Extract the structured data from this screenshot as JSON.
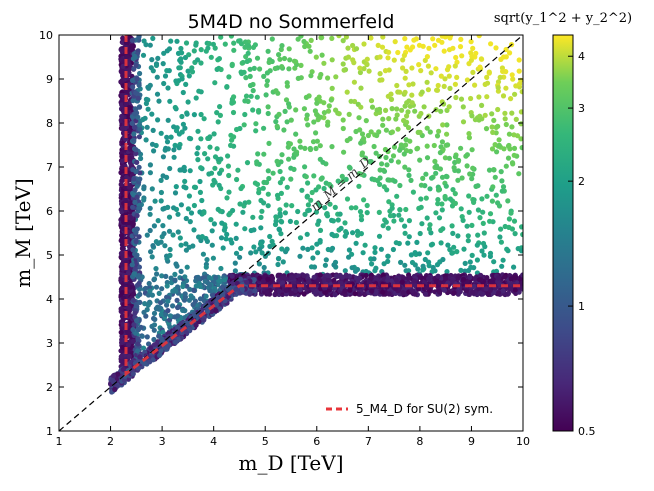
{
  "chart_data": {
    "type": "scatter",
    "title": "5M4D no Sommerfeld",
    "xlabel": "m_D [TeV]",
    "ylabel": "m_M [TeV]",
    "xlim": [
      1,
      10
    ],
    "ylim": [
      1,
      10
    ],
    "x_ticks": [
      "1",
      "2",
      "3",
      "4",
      "5",
      "6",
      "7",
      "8",
      "9",
      "10"
    ],
    "y_ticks": [
      "1",
      "2",
      "3",
      "4",
      "5",
      "6",
      "7",
      "8",
      "9",
      "10"
    ],
    "diagonal_label": "m_M = m_D",
    "legend": {
      "placement": "lower-right",
      "entries": [
        {
          "label": "5_M4_D for SU(2) sym.",
          "style": "dashed",
          "color": "#e8353a"
        }
      ]
    },
    "su2_line": {
      "x": [
        2.3,
        2.3,
        4.5,
        10
      ],
      "y": [
        10,
        2.3,
        4.3,
        4.3
      ]
    },
    "colorbar": {
      "label": "sqrt(y_1^2 + y_2^2)",
      "scale": "log",
      "range": [
        0.5,
        4.5
      ],
      "ticks": [
        "0.5",
        "1",
        "2",
        "3",
        "4"
      ],
      "colormap": "viridis"
    },
    "point_regions": [
      {
        "name": "vertical-band",
        "x_range": [
          2.2,
          2.45
        ],
        "y_range": [
          2.3,
          10
        ],
        "color_value": 0.5
      },
      {
        "name": "horizontal-band",
        "x_range": [
          4.5,
          10
        ],
        "y_range": [
          4.1,
          4.55
        ],
        "color_value": 0.55
      },
      {
        "name": "lower-diagonal-band",
        "x_range": [
          2.0,
          4.8
        ],
        "description": "along the SU(2) line, m_M slightly above/below",
        "color_value": 0.7
      },
      {
        "name": "upper-region-scatter",
        "x_range": [
          2.45,
          10
        ],
        "y_range": [
          4.55,
          10
        ],
        "color_value_range": [
          1.2,
          4.5
        ]
      }
    ]
  }
}
